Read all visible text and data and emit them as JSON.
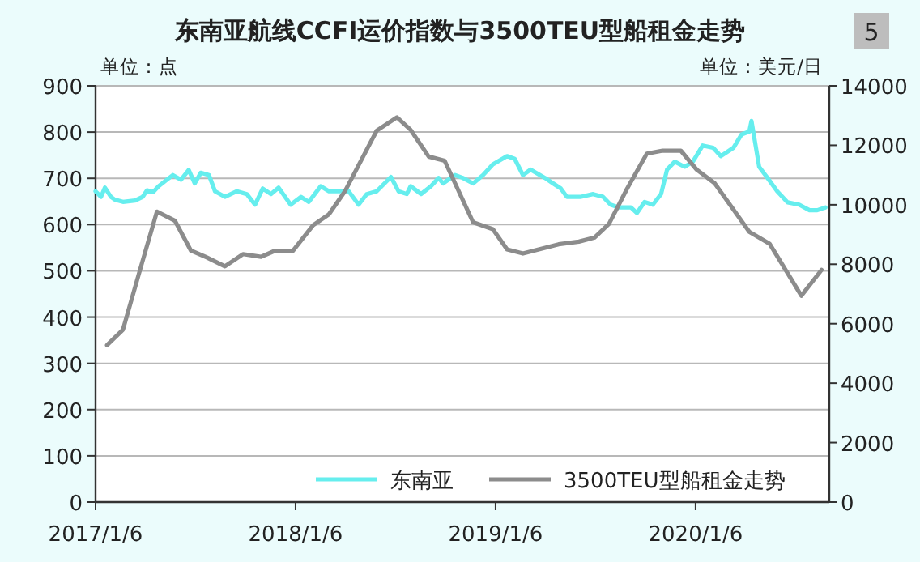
{
  "chart_data": {
    "type": "line",
    "title": "东南亚航线CCFI运价指数与3500TEU型船租金走势",
    "ylabel": "单位：点",
    "y2label": "单位：美元/日",
    "annotations": [
      "5"
    ],
    "xlim": [
      "2017-01-06",
      "2020-09-06"
    ],
    "xticks": [
      {
        "value": "2017-01-06",
        "label": "2017/1/6"
      },
      {
        "value": "2018-01-06",
        "label": "2018/1/6"
      },
      {
        "value": "2019-01-06",
        "label": "2019/1/6"
      },
      {
        "value": "2020-01-06",
        "label": "2020/1/6"
      }
    ],
    "ylim": [
      0,
      900
    ],
    "yticks": [
      0,
      100,
      200,
      300,
      400,
      500,
      600,
      700,
      800,
      900
    ],
    "y2lim": [
      0,
      14000
    ],
    "y2ticks": [
      0,
      2000,
      4000,
      6000,
      8000,
      10000,
      12000,
      14000
    ],
    "grid": "y",
    "legend": "bottom right",
    "marker": "none",
    "line_style": "solid",
    "series": [
      {
        "name": "东南亚",
        "color": "#66eeee",
        "x": [
          "2017-01-06",
          "2017-01-16",
          "2017-01-23",
          "2017-02-03",
          "2017-02-10",
          "2017-02-25",
          "2017-03-19",
          "2017-04-02",
          "2017-04-10",
          "2017-04-21",
          "2017-05-01",
          "2017-05-16",
          "2017-05-27",
          "2017-06-11",
          "2017-06-25",
          "2017-07-06",
          "2017-07-17",
          "2017-08-01",
          "2017-08-12",
          "2017-08-30",
          "2017-09-21",
          "2017-10-09",
          "2017-10-24",
          "2017-11-07",
          "2017-11-22",
          "2017-12-06",
          "2017-12-28",
          "2018-01-16",
          "2018-01-30",
          "2018-02-21",
          "2018-03-08",
          "2018-03-26",
          "2018-04-13",
          "2018-05-01",
          "2018-05-16",
          "2018-06-03",
          "2018-06-29",
          "2018-07-13",
          "2018-07-28",
          "2018-08-04",
          "2018-08-23",
          "2018-09-10",
          "2018-09-24",
          "2018-10-02",
          "2018-10-24",
          "2018-11-07",
          "2018-11-26",
          "2018-12-14",
          "2019-01-01",
          "2019-01-27",
          "2019-02-10",
          "2019-02-25",
          "2019-03-11",
          "2019-04-06",
          "2019-04-21",
          "2019-05-05",
          "2019-05-16",
          "2019-06-11",
          "2019-07-03",
          "2019-07-21",
          "2019-08-04",
          "2019-08-19",
          "2019-09-10",
          "2019-09-21",
          "2019-10-05",
          "2019-10-20",
          "2019-11-04",
          "2019-11-15",
          "2019-11-29",
          "2019-12-17",
          "2020-01-01",
          "2020-01-19",
          "2020-02-07",
          "2020-02-21",
          "2020-03-15",
          "2020-03-30",
          "2020-04-13",
          "2020-04-17",
          "2020-05-01",
          "2020-05-20",
          "2020-06-03",
          "2020-06-22",
          "2020-07-13",
          "2020-08-01",
          "2020-08-15",
          "2020-08-30"
        ],
        "values": [
          672,
          660,
          680,
          660,
          654,
          649,
          652,
          660,
          674,
          670,
          683,
          697,
          707,
          697,
          718,
          689,
          712,
          707,
          672,
          660,
          672,
          666,
          643,
          678,
          666,
          680,
          643,
          660,
          649,
          683,
          672,
          672,
          672,
          643,
          666,
          672,
          703,
          672,
          666,
          683,
          666,
          683,
          701,
          689,
          707,
          701,
          689,
          707,
          730,
          748,
          742,
          707,
          719,
          701,
          689,
          678,
          660,
          660,
          666,
          660,
          643,
          637,
          637,
          625,
          649,
          643,
          666,
          719,
          736,
          725,
          736,
          771,
          766,
          748,
          766,
          795,
          801,
          824,
          725,
          695,
          672,
          648,
          643,
          631,
          631,
          637
        ]
      },
      {
        "name": "3500TEU型船租金走势",
        "color": "#8c8c8c",
        "axis": "y2",
        "x": [
          "2017-01-27",
          "2017-02-25",
          "2017-03-30",
          "2017-04-28",
          "2017-05-31",
          "2017-06-29",
          "2017-07-28",
          "2017-08-30",
          "2017-10-02",
          "2017-11-04",
          "2017-11-29",
          "2018-01-01",
          "2018-02-07",
          "2018-03-08",
          "2018-04-06",
          "2018-06-03",
          "2018-07-10",
          "2018-08-04",
          "2018-09-06",
          "2018-10-05",
          "2018-11-26",
          "2019-01-01",
          "2019-01-27",
          "2019-02-25",
          "2019-05-01",
          "2019-06-07",
          "2019-07-06",
          "2019-08-01",
          "2019-09-03",
          "2019-10-09",
          "2019-11-07",
          "2019-12-10",
          "2020-01-08",
          "2020-02-10",
          "2020-04-13",
          "2020-05-20",
          "2020-07-17",
          "2020-08-23"
        ],
        "values": [
          5280,
          5800,
          7930,
          9770,
          9460,
          8460,
          8230,
          7930,
          8340,
          8250,
          8450,
          8450,
          9310,
          9680,
          10450,
          12490,
          12940,
          12520,
          11620,
          11480,
          9410,
          9180,
          8500,
          8360,
          8670,
          8760,
          8900,
          9360,
          10540,
          11720,
          11820,
          11820,
          11180,
          10720,
          9090,
          8690,
          6940,
          7810
        ]
      }
    ]
  }
}
